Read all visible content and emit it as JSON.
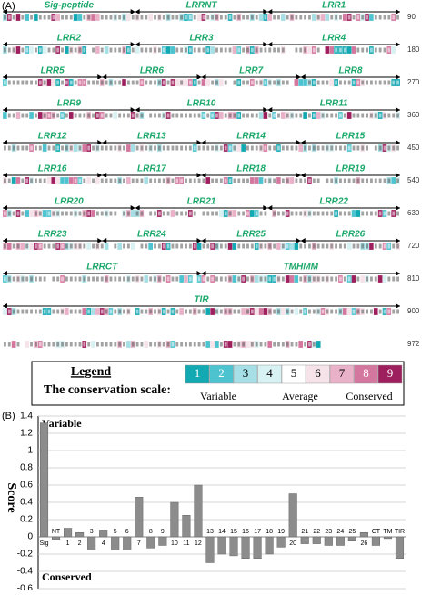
{
  "panel_a": {
    "label": "(A)",
    "rows": [
      {
        "end": 90,
        "domains": [
          "Sig-peptide",
          "LRRNT",
          "LRR1"
        ]
      },
      {
        "end": 180,
        "domains": [
          "LRR2",
          "LRR3",
          "LRR4"
        ]
      },
      {
        "end": 270,
        "domains": [
          "LRR5",
          "LRR6",
          "LRR7",
          "LRR8"
        ]
      },
      {
        "end": 360,
        "domains": [
          "LRR9",
          "LRR10",
          "LRR11"
        ]
      },
      {
        "end": 450,
        "domains": [
          "LRR12",
          "LRR13",
          "LRR14",
          "LRR15"
        ]
      },
      {
        "end": 540,
        "domains": [
          "LRR16",
          "LRR17",
          "LRR18",
          "LRR19"
        ]
      },
      {
        "end": 630,
        "domains": [
          "LRR20",
          "LRR21",
          "LRR22"
        ]
      },
      {
        "end": 720,
        "domains": [
          "LRR23",
          "LRR24",
          "LRR25",
          "LRR26"
        ]
      },
      {
        "end": 810,
        "domains": [
          "LRRCT",
          "TMHMM"
        ]
      },
      {
        "end": 900,
        "domains": [
          "TIR"
        ]
      },
      {
        "end": 972,
        "domains": []
      }
    ],
    "legend": {
      "title": "Legend",
      "scale_title": "The conservation scale:",
      "levels": [
        "1",
        "2",
        "3",
        "4",
        "5",
        "6",
        "7",
        "8",
        "9"
      ],
      "level_colors": [
        "#12a9b3",
        "#4cc3cf",
        "#a6dfe5",
        "#d8f1f3",
        "#ffffff",
        "#f6e3ea",
        "#eab2c8",
        "#d4779e",
        "#9e1f5e"
      ],
      "variable": "Variable",
      "average": "Average",
      "conserved": "Conserved"
    }
  },
  "panel_b_label": "(B)",
  "chart_data": {
    "type": "bar",
    "ylabel": "Score",
    "annotations": [
      "Variable",
      "Conserved"
    ],
    "categories": [
      "Sig",
      "NT",
      "1",
      "2",
      "3",
      "4",
      "5",
      "6",
      "7",
      "8",
      "9",
      "10",
      "11",
      "12",
      "13",
      "14",
      "15",
      "16",
      "17",
      "18",
      "19",
      "20",
      "21",
      "22",
      "23",
      "24",
      "25",
      "26",
      "CT",
      "TM",
      "TIR"
    ],
    "values": [
      1.32,
      -0.03,
      0.1,
      0.05,
      -0.15,
      0.08,
      -0.15,
      -0.15,
      0.46,
      -0.13,
      -0.1,
      0.4,
      0.25,
      0.6,
      -0.3,
      -0.2,
      -0.22,
      -0.25,
      -0.25,
      -0.2,
      -0.12,
      0.5,
      -0.08,
      -0.08,
      -0.1,
      -0.1,
      -0.05,
      0.05,
      -0.1,
      -0.02,
      -0.25
    ],
    "color": "#8c8c8c",
    "ylim": [
      -0.6,
      1.4
    ],
    "yticks": [
      -0.6,
      -0.4,
      -0.2,
      0,
      0.2,
      0.4,
      0.6,
      0.8,
      1,
      1.2,
      1.4
    ],
    "grid": true
  }
}
